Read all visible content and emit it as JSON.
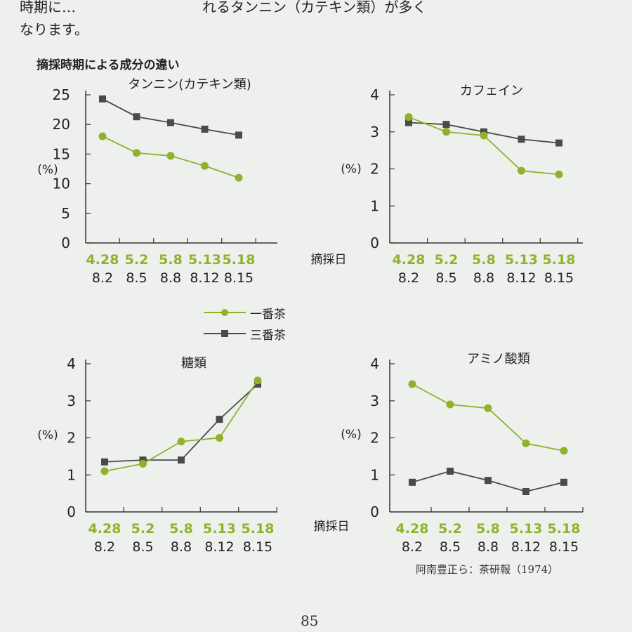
{
  "intro_text": [
    "時期に…　　　　　　　　　れるタンニン（カテキン類）が多く",
    "なります。"
  ],
  "figure_title": "摘採時期による成分の違い",
  "legend": {
    "first_flush": "一番茶",
    "third_flush": "三番茶"
  },
  "colors": {
    "first_flush": "#8db32b",
    "third_flush": "#4a4a4a"
  },
  "source": "阿南豊正ら：茶研報（1974）",
  "page_number": "85",
  "chart_data": [
    {
      "type": "line",
      "title": "タンニン(カテキン類)",
      "ylabel": "(%)",
      "xlabel": "摘採日",
      "ylim": [
        0,
        25
      ],
      "yticks": [
        0,
        5,
        10,
        15,
        20,
        25
      ],
      "categories_first": [
        "4.28",
        "5.2",
        "5.8",
        "5.13",
        "5.18"
      ],
      "categories_third": [
        "8.2",
        "8.5",
        "8.8",
        "8.12",
        "8.15"
      ],
      "series": [
        {
          "name": "一番茶",
          "values": [
            18.0,
            15.2,
            14.7,
            13.0,
            11.0
          ]
        },
        {
          "name": "三番茶",
          "values": [
            24.3,
            21.3,
            20.3,
            19.2,
            18.2
          ]
        }
      ]
    },
    {
      "type": "line",
      "title": "カフェイン",
      "ylabel": "(%)",
      "xlabel": "",
      "ylim": [
        0,
        4
      ],
      "yticks": [
        0,
        1,
        2,
        3,
        4
      ],
      "categories_first": [
        "4.28",
        "5.2",
        "5.8",
        "5.13",
        "5.18"
      ],
      "categories_third": [
        "8.2",
        "8.5",
        "8.8",
        "8.12",
        "8.15"
      ],
      "series": [
        {
          "name": "一番茶",
          "values": [
            3.4,
            3.0,
            2.9,
            1.95,
            1.85
          ]
        },
        {
          "name": "三番茶",
          "values": [
            3.25,
            3.2,
            3.0,
            2.8,
            2.7
          ]
        }
      ]
    },
    {
      "type": "line",
      "title": "糖類",
      "ylabel": "(%)",
      "xlabel": "摘採日",
      "ylim": [
        0,
        4
      ],
      "yticks": [
        0,
        1,
        2,
        3,
        4
      ],
      "categories_first": [
        "4.28",
        "5.2",
        "5.8",
        "5.13",
        "5.18"
      ],
      "categories_third": [
        "8.2",
        "8.5",
        "8.8",
        "8.12",
        "8.15"
      ],
      "series": [
        {
          "name": "一番茶",
          "values": [
            1.1,
            1.3,
            1.9,
            2.0,
            3.55
          ]
        },
        {
          "name": "三番茶",
          "values": [
            1.35,
            1.4,
            1.4,
            2.5,
            3.45
          ]
        }
      ]
    },
    {
      "type": "line",
      "title": "アミノ酸類",
      "ylabel": "(%)",
      "xlabel": "",
      "ylim": [
        0,
        4
      ],
      "yticks": [
        0,
        1,
        2,
        3,
        4
      ],
      "categories_first": [
        "4.28",
        "5.2",
        "5.8",
        "5.13",
        "5.18"
      ],
      "categories_third": [
        "8.2",
        "8.5",
        "8.8",
        "8.12",
        "8.15"
      ],
      "series": [
        {
          "name": "一番茶",
          "values": [
            3.45,
            2.9,
            2.8,
            1.85,
            1.65
          ]
        },
        {
          "name": "三番茶",
          "values": [
            0.8,
            1.1,
            0.85,
            0.55,
            0.8
          ]
        }
      ]
    }
  ]
}
